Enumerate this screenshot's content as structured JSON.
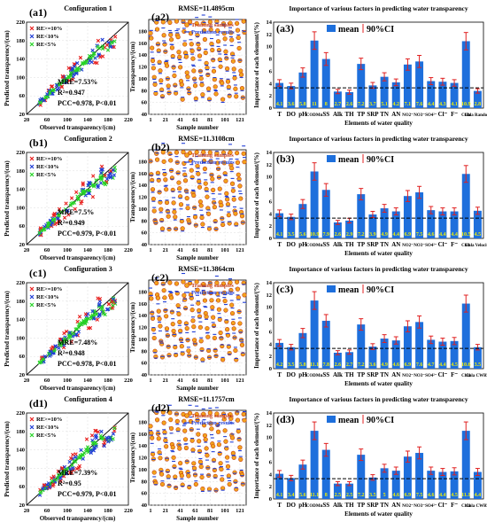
{
  "figure": {
    "rows": [
      {
        "scatter": {
          "panel_label": "(a1)",
          "title": "Configuration 1",
          "mre": "MRE=7.53%",
          "r2": "R²=0.947",
          "pcc": "PCC=0.978, P<0.01"
        },
        "series": {
          "panel_label": "(a2)",
          "title": "RMSE=11.4895cm"
        },
        "bars": {
          "panel_label": "(a3)",
          "title": "Importance of various factors in predicting water transparency",
          "last_category": "Chla Random",
          "values": [
            4.1,
            3.6,
            5.8,
            11.0,
            8.0,
            2.7,
            2.6,
            7.2,
            3.7,
            5.1,
            4.2,
            7.1,
            7.6,
            4.4,
            4.3,
            4.1,
            10.9,
            2.8
          ],
          "labels": [
            "4.1",
            "3.6",
            "5.8",
            "11",
            "8",
            "2.7",
            "2.6",
            "7.2",
            "3.7",
            "5.1",
            "4.2",
            "7.1",
            "7.6",
            "4.4",
            "4.3",
            "4.1",
            "10.9",
            "2.8"
          ]
        }
      },
      {
        "scatter": {
          "panel_label": "(b1)",
          "title": "Configuration 2",
          "mre": "MRE=7.5%",
          "r2": "R²=0.949",
          "pcc": "PCC=0.979, P<0.01"
        },
        "series": {
          "panel_label": "(b2)",
          "title": "RMSE=11.3108cm"
        },
        "bars": {
          "panel_label": "(b3)",
          "title": "Importance of various factors in predicting water transparency",
          "last_category": "Chla Velocity",
          "values": [
            4.1,
            3.5,
            5.6,
            10.9,
            7.9,
            2.6,
            2.9,
            7.2,
            3.9,
            4.9,
            4.4,
            6.9,
            7.5,
            4.6,
            4.4,
            4.4,
            10.5,
            4.5
          ],
          "labels": [
            "4.1",
            "3.5",
            "5.6",
            "10.9",
            "7.9",
            "2.6",
            "2.9",
            "7.2",
            "3.9",
            "4.9",
            "4.4",
            "6.9",
            "7.5",
            "4.6",
            "4.4",
            "4.4",
            "10.5",
            "4.5"
          ]
        }
      },
      {
        "scatter": {
          "panel_label": "(c1)",
          "title": "Configuration 3",
          "mre": "MRE=7.48%",
          "r2": "R²=0.948",
          "pcc": "PCC=0.978, P<0.01"
        },
        "series": {
          "panel_label": "(c2)",
          "title": "RMSE=11.3864cm"
        },
        "bars": {
          "panel_label": "(c3)",
          "title": "Importance of various factors in predicting water transparency",
          "last_category": "Chla CWRT",
          "values": [
            4.2,
            3.5,
            5.8,
            11.1,
            7.8,
            2.6,
            2.7,
            7.2,
            3.6,
            4.9,
            4.6,
            6.9,
            7.6,
            4.7,
            4.4,
            4.5,
            10.6,
            3.5
          ],
          "labels": [
            "4.2",
            "3.5",
            "5.8",
            "11.1",
            "7.8",
            "2.6",
            "2.7",
            "7.2",
            "3.6",
            "4.9",
            "4.6",
            "6.9",
            "7.6",
            "4.7",
            "4.4",
            "4.5",
            "10.6",
            "3.5"
          ]
        }
      },
      {
        "scatter": {
          "panel_label": "(d1)",
          "title": "Configuration 4",
          "mre": "MRE=7.39%",
          "r2": "R²=0.95",
          "pcc": "PCC=0.979, P<0.01"
        },
        "series": {
          "panel_label": "(d2)",
          "title": "RMSE=11.1757cm"
        },
        "bars": {
          "panel_label": "(d3)",
          "title": "Importance of various factors in predicting water transparency",
          "last_category": "Chla CWRT",
          "values": [
            4.1,
            3.4,
            5.6,
            11.1,
            8.0,
            2.5,
            2.5,
            7.2,
            3.5,
            5.0,
            4.6,
            6.9,
            7.5,
            4.6,
            4.4,
            4.5,
            11.1,
            4.4
          ],
          "labels": [
            "4.1",
            "3.4",
            "5.6",
            "11.1",
            "8",
            "2.5",
            "2.5",
            "7.2",
            "3.5",
            "5",
            "4.6",
            "6.9",
            "7.5",
            "4.6",
            "4.4",
            "4.5",
            "11.1",
            "4.4"
          ]
        }
      }
    ],
    "scatter_axes": {
      "xlabel": "Observed transparency/(cm)",
      "ylabel": "Predicted transparency/(cm)",
      "xlim": [
        20,
        220
      ],
      "ylim": [
        20,
        220
      ],
      "ticks": [
        "20",
        "60",
        "100",
        "140",
        "180",
        "220"
      ],
      "tick_values": [
        20,
        60,
        100,
        140,
        180,
        220
      ]
    },
    "scatter_legend": [
      "RE>=10%",
      "RE<10%",
      "RE<5%"
    ],
    "series_axes": {
      "xlabel": "Sample number",
      "ylabel": "Transparency/(cm)",
      "ylim": [
        40,
        200
      ],
      "xticks": [
        "1",
        "21",
        "41",
        "61",
        "81",
        "101",
        "121"
      ],
      "xtick_values": [
        1,
        21,
        41,
        61,
        81,
        101,
        121
      ],
      "yticks": [
        "40",
        "60",
        "80",
        "100",
        "120",
        "140",
        "160",
        "180"
      ],
      "ytick_values": [
        40,
        60,
        80,
        100,
        120,
        140,
        160,
        180
      ]
    },
    "series_legend": [
      "Training samples",
      "Prediction results"
    ],
    "bar_axes": {
      "xlabel": "Elements of water quality",
      "ylabel": "Importance of each element/(%)",
      "ylim": [
        0,
        14
      ],
      "yticks": [
        "0",
        "2",
        "4",
        "6",
        "8",
        "10",
        "12",
        "14"
      ],
      "ytick_values": [
        0,
        2,
        4,
        6,
        8,
        10,
        12,
        14
      ],
      "categories": [
        "T",
        "DO",
        "pH",
        "CODMn",
        "SS",
        "Alk",
        "TH",
        "TP",
        "SRP",
        "TN",
        "AN",
        "NO2⁻",
        "NO3⁻",
        "SO4²⁻",
        "Cl⁻",
        "F⁻",
        "Chla",
        ""
      ],
      "threshold": 3.3
    },
    "bar_legend": [
      "mean",
      "90%CI"
    ],
    "colors": {
      "bar": "#1e6fdc",
      "ci": "#e02020",
      "re10": "#e8201e",
      "re5_10": "#1f3dd6",
      "re5": "#27d427",
      "train_fill": "#f2a31c",
      "train_edge": "#c43a12",
      "pred": "#1f3dd6",
      "bar_label": "#f0f000",
      "line": "#000000"
    }
  }
}
